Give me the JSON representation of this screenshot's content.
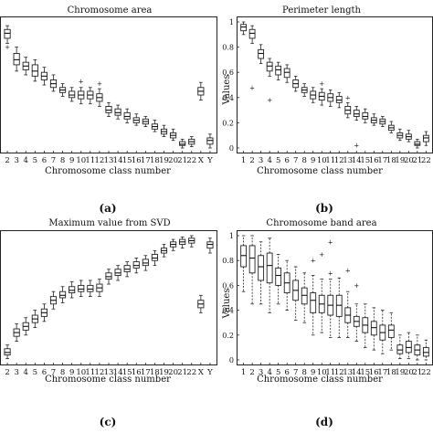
{
  "chart_data": [
    {
      "type": "box",
      "panel": "(a)",
      "title": "Chromosome area",
      "xlabel": "Chromosome class number",
      "ylabel": "",
      "ylim": [
        0,
        1
      ],
      "yticks": [],
      "categories": [
        "2",
        "3",
        "4",
        "5",
        "6",
        "7",
        "8",
        "9",
        "10",
        "11",
        "12",
        "13",
        "14",
        "15",
        "16",
        "17",
        "18",
        "19",
        "20",
        "21",
        "22",
        "X",
        "Y"
      ],
      "boxes": [
        {
          "med": 0.91,
          "q1": 0.87,
          "q3": 0.94,
          "wlo": 0.83,
          "whi": 0.97,
          "out": [
            0.8
          ]
        },
        {
          "med": 0.7,
          "q1": 0.66,
          "q3": 0.75,
          "wlo": 0.61,
          "whi": 0.8,
          "out": []
        },
        {
          "med": 0.65,
          "q1": 0.62,
          "q3": 0.68,
          "wlo": 0.58,
          "whi": 0.72,
          "out": []
        },
        {
          "med": 0.61,
          "q1": 0.57,
          "q3": 0.66,
          "wlo": 0.53,
          "whi": 0.7,
          "out": []
        },
        {
          "med": 0.57,
          "q1": 0.54,
          "q3": 0.6,
          "wlo": 0.5,
          "whi": 0.64,
          "out": []
        },
        {
          "med": 0.51,
          "q1": 0.48,
          "q3": 0.54,
          "wlo": 0.45,
          "whi": 0.58,
          "out": []
        },
        {
          "med": 0.46,
          "q1": 0.44,
          "q3": 0.48,
          "wlo": 0.41,
          "whi": 0.51,
          "out": []
        },
        {
          "med": 0.42,
          "q1": 0.4,
          "q3": 0.45,
          "wlo": 0.37,
          "whi": 0.48,
          "out": []
        },
        {
          "med": 0.42,
          "q1": 0.39,
          "q3": 0.45,
          "wlo": 0.35,
          "whi": 0.48,
          "out": [
            0.53
          ]
        },
        {
          "med": 0.42,
          "q1": 0.39,
          "q3": 0.45,
          "wlo": 0.35,
          "whi": 0.48,
          "out": []
        },
        {
          "med": 0.4,
          "q1": 0.37,
          "q3": 0.43,
          "wlo": 0.33,
          "whi": 0.47,
          "out": [
            0.51
          ]
        },
        {
          "med": 0.3,
          "q1": 0.28,
          "q3": 0.33,
          "wlo": 0.25,
          "whi": 0.36,
          "out": []
        },
        {
          "med": 0.28,
          "q1": 0.26,
          "q3": 0.31,
          "wlo": 0.23,
          "whi": 0.34,
          "out": []
        },
        {
          "med": 0.25,
          "q1": 0.23,
          "q3": 0.28,
          "wlo": 0.2,
          "whi": 0.31,
          "out": []
        },
        {
          "med": 0.22,
          "q1": 0.2,
          "q3": 0.24,
          "wlo": 0.18,
          "whi": 0.27,
          "out": []
        },
        {
          "med": 0.21,
          "q1": 0.19,
          "q3": 0.23,
          "wlo": 0.17,
          "whi": 0.25,
          "out": []
        },
        {
          "med": 0.17,
          "q1": 0.15,
          "q3": 0.19,
          "wlo": 0.13,
          "whi": 0.22,
          "out": []
        },
        {
          "med": 0.13,
          "q1": 0.11,
          "q3": 0.15,
          "wlo": 0.09,
          "whi": 0.18,
          "out": []
        },
        {
          "med": 0.1,
          "q1": 0.08,
          "q3": 0.12,
          "wlo": 0.06,
          "whi": 0.15,
          "out": []
        },
        {
          "med": 0.03,
          "q1": 0.02,
          "q3": 0.05,
          "wlo": 0.0,
          "whi": 0.07,
          "out": []
        },
        {
          "med": 0.05,
          "q1": 0.03,
          "q3": 0.07,
          "wlo": 0.01,
          "whi": 0.09,
          "out": []
        },
        {
          "med": 0.45,
          "q1": 0.42,
          "q3": 0.48,
          "wlo": 0.38,
          "whi": 0.52,
          "out": []
        },
        {
          "med": 0.06,
          "q1": 0.03,
          "q3": 0.08,
          "wlo": 0.0,
          "whi": 0.11,
          "out": []
        }
      ]
    },
    {
      "type": "box",
      "panel": "(b)",
      "title": "Perimeter length",
      "xlabel": "Chromosome class number",
      "ylabel": "Values",
      "ylim": [
        0,
        1
      ],
      "yticks": [
        "0",
        "0.2",
        "0.4",
        "0.6",
        "0.8",
        "1"
      ],
      "categories": [
        "1",
        "2",
        "3",
        "4",
        "5",
        "6",
        "7",
        "8",
        "9",
        "10",
        "11",
        "12",
        "13",
        "14",
        "15",
        "16",
        "17",
        "18",
        "19",
        "20",
        "21",
        "22"
      ],
      "boxes": [
        {
          "med": 0.96,
          "q1": 0.93,
          "q3": 0.98,
          "wlo": 0.9,
          "whi": 1.0,
          "out": []
        },
        {
          "med": 0.91,
          "q1": 0.87,
          "q3": 0.94,
          "wlo": 0.83,
          "whi": 0.97,
          "out": [
            0.48
          ]
        },
        {
          "med": 0.75,
          "q1": 0.71,
          "q3": 0.78,
          "wlo": 0.67,
          "whi": 0.82,
          "out": []
        },
        {
          "med": 0.65,
          "q1": 0.61,
          "q3": 0.68,
          "wlo": 0.57,
          "whi": 0.71,
          "out": [
            0.38
          ]
        },
        {
          "med": 0.62,
          "q1": 0.58,
          "q3": 0.65,
          "wlo": 0.54,
          "whi": 0.68,
          "out": []
        },
        {
          "med": 0.6,
          "q1": 0.56,
          "q3": 0.63,
          "wlo": 0.52,
          "whi": 0.66,
          "out": []
        },
        {
          "med": 0.51,
          "q1": 0.48,
          "q3": 0.54,
          "wlo": 0.45,
          "whi": 0.57,
          "out": []
        },
        {
          "med": 0.46,
          "q1": 0.44,
          "q3": 0.48,
          "wlo": 0.41,
          "whi": 0.51,
          "out": []
        },
        {
          "med": 0.42,
          "q1": 0.39,
          "q3": 0.45,
          "wlo": 0.36,
          "whi": 0.48,
          "out": []
        },
        {
          "med": 0.41,
          "q1": 0.38,
          "q3": 0.44,
          "wlo": 0.34,
          "whi": 0.47,
          "out": [
            0.51
          ]
        },
        {
          "med": 0.4,
          "q1": 0.37,
          "q3": 0.43,
          "wlo": 0.33,
          "whi": 0.46,
          "out": []
        },
        {
          "med": 0.38,
          "q1": 0.36,
          "q3": 0.41,
          "wlo": 0.32,
          "whi": 0.44,
          "out": []
        },
        {
          "med": 0.3,
          "q1": 0.27,
          "q3": 0.33,
          "wlo": 0.24,
          "whi": 0.36,
          "out": [
            0.4
          ]
        },
        {
          "med": 0.27,
          "q1": 0.25,
          "q3": 0.3,
          "wlo": 0.22,
          "whi": 0.33,
          "out": [
            0.02
          ]
        },
        {
          "med": 0.25,
          "q1": 0.23,
          "q3": 0.28,
          "wlo": 0.2,
          "whi": 0.31,
          "out": []
        },
        {
          "med": 0.22,
          "q1": 0.2,
          "q3": 0.24,
          "wlo": 0.18,
          "whi": 0.27,
          "out": []
        },
        {
          "med": 0.21,
          "q1": 0.19,
          "q3": 0.23,
          "wlo": 0.17,
          "whi": 0.25,
          "out": []
        },
        {
          "med": 0.16,
          "q1": 0.14,
          "q3": 0.18,
          "wlo": 0.12,
          "whi": 0.21,
          "out": []
        },
        {
          "med": 0.1,
          "q1": 0.08,
          "q3": 0.12,
          "wlo": 0.06,
          "whi": 0.15,
          "out": []
        },
        {
          "med": 0.09,
          "q1": 0.07,
          "q3": 0.11,
          "wlo": 0.05,
          "whi": 0.14,
          "out": []
        },
        {
          "med": 0.03,
          "q1": 0.02,
          "q3": 0.05,
          "wlo": 0.0,
          "whi": 0.07,
          "out": []
        },
        {
          "med": 0.08,
          "q1": 0.05,
          "q3": 0.1,
          "wlo": 0.02,
          "whi": 0.13,
          "out": []
        }
      ]
    },
    {
      "type": "box",
      "panel": "(c)",
      "title": "Maximum value from SVD",
      "xlabel": "Chromosome class number",
      "ylabel": "",
      "ylim": [
        0,
        1
      ],
      "yticks": [],
      "categories": [
        "2",
        "3",
        "4",
        "5",
        "6",
        "7",
        "8",
        "9",
        "10",
        "11",
        "12",
        "13",
        "14",
        "15",
        "16",
        "17",
        "18",
        "19",
        "20",
        "21",
        "22",
        "X",
        "Y"
      ],
      "boxes": [
        {
          "med": 0.06,
          "q1": 0.04,
          "q3": 0.09,
          "wlo": 0.01,
          "whi": 0.12,
          "out": []
        },
        {
          "med": 0.22,
          "q1": 0.19,
          "q3": 0.25,
          "wlo": 0.15,
          "whi": 0.29,
          "out": []
        },
        {
          "med": 0.27,
          "q1": 0.24,
          "q3": 0.3,
          "wlo": 0.2,
          "whi": 0.34,
          "out": []
        },
        {
          "med": 0.33,
          "q1": 0.3,
          "q3": 0.36,
          "wlo": 0.26,
          "whi": 0.4,
          "out": []
        },
        {
          "med": 0.38,
          "q1": 0.35,
          "q3": 0.41,
          "wlo": 0.31,
          "whi": 0.45,
          "out": []
        },
        {
          "med": 0.48,
          "q1": 0.45,
          "q3": 0.51,
          "wlo": 0.41,
          "whi": 0.55,
          "out": []
        },
        {
          "med": 0.52,
          "q1": 0.5,
          "q3": 0.55,
          "wlo": 0.46,
          "whi": 0.59,
          "out": []
        },
        {
          "med": 0.56,
          "q1": 0.54,
          "q3": 0.59,
          "wlo": 0.5,
          "whi": 0.63,
          "out": []
        },
        {
          "med": 0.57,
          "q1": 0.55,
          "q3": 0.6,
          "wlo": 0.51,
          "whi": 0.64,
          "out": []
        },
        {
          "med": 0.57,
          "q1": 0.55,
          "q3": 0.6,
          "wlo": 0.51,
          "whi": 0.64,
          "out": []
        },
        {
          "med": 0.58,
          "q1": 0.55,
          "q3": 0.61,
          "wlo": 0.51,
          "whi": 0.65,
          "out": []
        },
        {
          "med": 0.67,
          "q1": 0.65,
          "q3": 0.7,
          "wlo": 0.61,
          "whi": 0.73,
          "out": []
        },
        {
          "med": 0.7,
          "q1": 0.68,
          "q3": 0.73,
          "wlo": 0.64,
          "whi": 0.76,
          "out": []
        },
        {
          "med": 0.73,
          "q1": 0.71,
          "q3": 0.76,
          "wlo": 0.67,
          "whi": 0.79,
          "out": []
        },
        {
          "med": 0.76,
          "q1": 0.74,
          "q3": 0.79,
          "wlo": 0.7,
          "whi": 0.82,
          "out": []
        },
        {
          "med": 0.78,
          "q1": 0.76,
          "q3": 0.81,
          "wlo": 0.72,
          "whi": 0.84,
          "out": []
        },
        {
          "med": 0.82,
          "q1": 0.8,
          "q3": 0.85,
          "wlo": 0.76,
          "whi": 0.88,
          "out": []
        },
        {
          "med": 0.88,
          "q1": 0.86,
          "q3": 0.9,
          "wlo": 0.83,
          "whi": 0.93,
          "out": []
        },
        {
          "med": 0.93,
          "q1": 0.91,
          "q3": 0.95,
          "wlo": 0.88,
          "whi": 0.97,
          "out": []
        },
        {
          "med": 0.95,
          "q1": 0.93,
          "q3": 0.97,
          "wlo": 0.9,
          "whi": 0.99,
          "out": []
        },
        {
          "med": 0.96,
          "q1": 0.94,
          "q3": 0.98,
          "wlo": 0.91,
          "whi": 1.0,
          "out": []
        },
        {
          "med": 0.45,
          "q1": 0.42,
          "q3": 0.48,
          "wlo": 0.38,
          "whi": 0.52,
          "out": []
        },
        {
          "med": 0.93,
          "q1": 0.9,
          "q3": 0.95,
          "wlo": 0.86,
          "whi": 0.98,
          "out": []
        }
      ]
    },
    {
      "type": "box",
      "panel": "(d)",
      "title": "Chromosome band area",
      "xlabel": "Chromosome class number",
      "ylabel": "Values",
      "ylim": [
        0,
        1
      ],
      "yticks": [
        "0",
        "0.2",
        "0.4",
        "0.6",
        "0.8",
        "1"
      ],
      "categories": [
        "1",
        "2",
        "3",
        "4",
        "5",
        "6",
        "7",
        "8",
        "9",
        "10",
        "11",
        "12",
        "13",
        "14",
        "15",
        "16",
        "17",
        "18",
        "19",
        "20",
        "21",
        "22"
      ],
      "boxes": [
        {
          "med": 0.84,
          "q1": 0.75,
          "q3": 0.92,
          "wlo": 0.55,
          "whi": 1.0,
          "out": []
        },
        {
          "med": 0.82,
          "q1": 0.7,
          "q3": 0.92,
          "wlo": 0.45,
          "whi": 1.0,
          "out": []
        },
        {
          "med": 0.75,
          "q1": 0.64,
          "q3": 0.84,
          "wlo": 0.45,
          "whi": 0.95,
          "out": []
        },
        {
          "med": 0.76,
          "q1": 0.62,
          "q3": 0.86,
          "wlo": 0.38,
          "whi": 0.98,
          "out": []
        },
        {
          "med": 0.68,
          "q1": 0.6,
          "q3": 0.74,
          "wlo": 0.45,
          "whi": 0.85,
          "out": []
        },
        {
          "med": 0.62,
          "q1": 0.54,
          "q3": 0.7,
          "wlo": 0.4,
          "whi": 0.8,
          "out": []
        },
        {
          "med": 0.56,
          "q1": 0.48,
          "q3": 0.64,
          "wlo": 0.32,
          "whi": 0.75,
          "out": []
        },
        {
          "med": 0.52,
          "q1": 0.45,
          "q3": 0.58,
          "wlo": 0.3,
          "whi": 0.7,
          "out": []
        },
        {
          "med": 0.48,
          "q1": 0.38,
          "q3": 0.54,
          "wlo": 0.2,
          "whi": 0.68,
          "out": [
            0.8
          ]
        },
        {
          "med": 0.45,
          "q1": 0.38,
          "q3": 0.52,
          "wlo": 0.22,
          "whi": 0.65,
          "out": [
            0.85
          ]
        },
        {
          "med": 0.44,
          "q1": 0.36,
          "q3": 0.52,
          "wlo": 0.18,
          "whi": 0.65,
          "out": [
            0.95,
            0.7
          ]
        },
        {
          "med": 0.44,
          "q1": 0.35,
          "q3": 0.52,
          "wlo": 0.18,
          "whi": 0.66,
          "out": []
        },
        {
          "med": 0.36,
          "q1": 0.3,
          "q3": 0.42,
          "wlo": 0.18,
          "whi": 0.55,
          "out": [
            0.72
          ]
        },
        {
          "med": 0.31,
          "q1": 0.27,
          "q3": 0.35,
          "wlo": 0.15,
          "whi": 0.45,
          "out": [
            0.6
          ]
        },
        {
          "med": 0.28,
          "q1": 0.22,
          "q3": 0.34,
          "wlo": 0.1,
          "whi": 0.45,
          "out": []
        },
        {
          "med": 0.26,
          "q1": 0.2,
          "q3": 0.31,
          "wlo": 0.08,
          "whi": 0.42,
          "out": []
        },
        {
          "med": 0.22,
          "q1": 0.16,
          "q3": 0.28,
          "wlo": 0.05,
          "whi": 0.4,
          "out": []
        },
        {
          "med": 0.24,
          "q1": 0.18,
          "q3": 0.28,
          "wlo": 0.08,
          "whi": 0.38,
          "out": []
        },
        {
          "med": 0.08,
          "q1": 0.05,
          "q3": 0.12,
          "wlo": 0.01,
          "whi": 0.2,
          "out": []
        },
        {
          "med": 0.1,
          "q1": 0.06,
          "q3": 0.15,
          "wlo": 0.01,
          "whi": 0.22,
          "out": []
        },
        {
          "med": 0.08,
          "q1": 0.04,
          "q3": 0.12,
          "wlo": 0.0,
          "whi": 0.2,
          "out": []
        },
        {
          "med": 0.06,
          "q1": 0.03,
          "q3": 0.1,
          "wlo": 0.0,
          "whi": 0.16,
          "out": []
        }
      ]
    }
  ]
}
